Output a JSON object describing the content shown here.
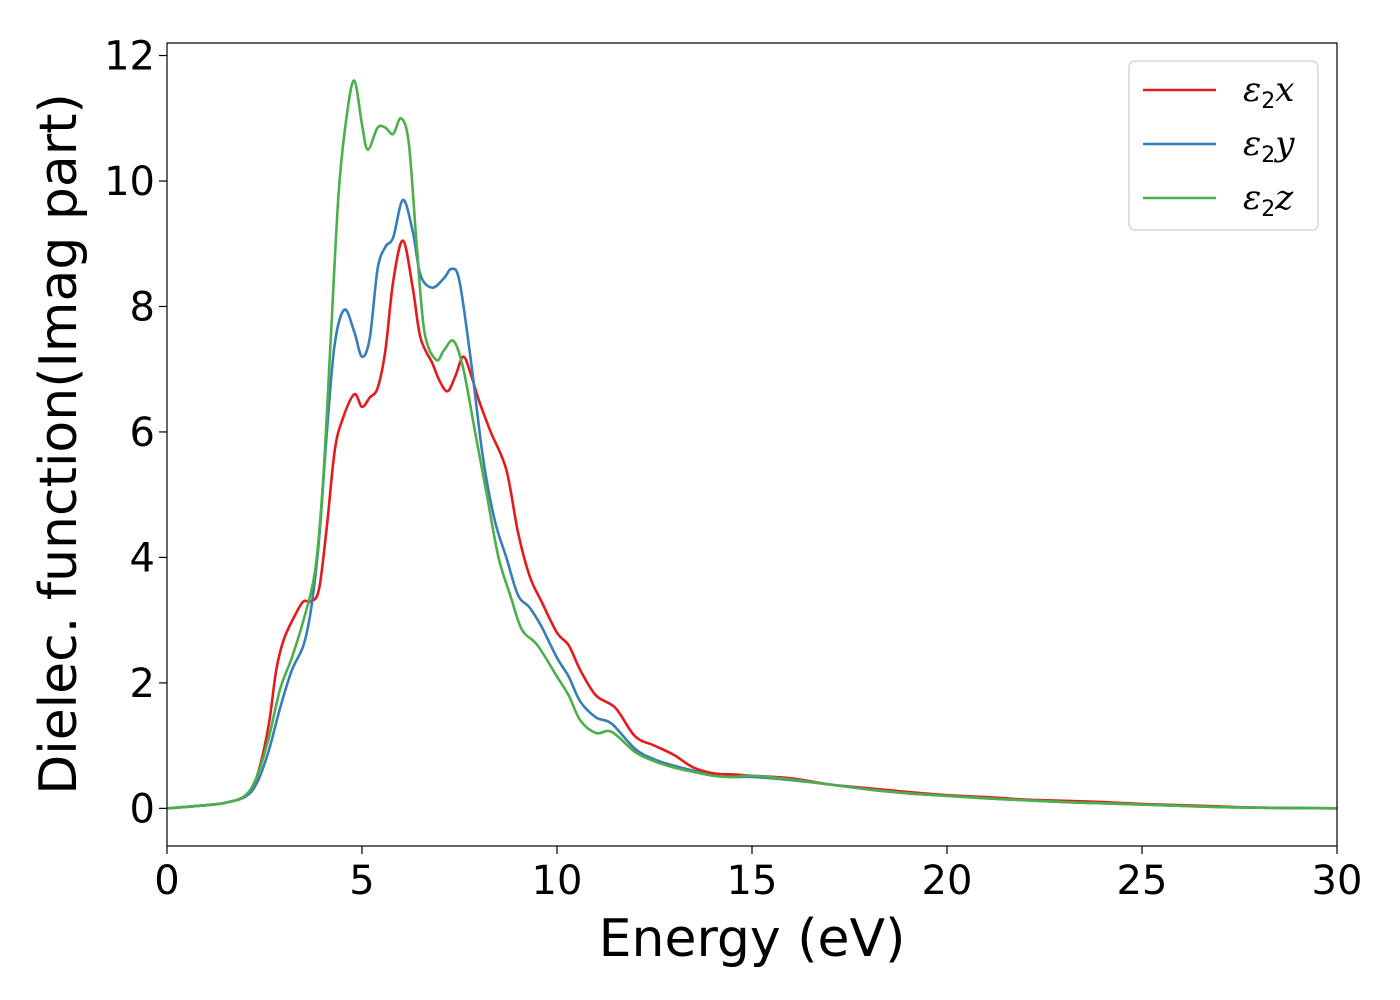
{
  "chart_data": {
    "type": "line",
    "title": "",
    "xlabel": "Energy (eV)",
    "ylabel": "Dielec. function(Imag part)",
    "xlim": [
      0,
      30
    ],
    "ylim": [
      -0.6,
      12.2
    ],
    "xticks": [
      0,
      5,
      10,
      15,
      20,
      25,
      30
    ],
    "yticks": [
      0,
      2,
      4,
      6,
      8,
      10,
      12
    ],
    "xtick_labels": [
      "0",
      "5",
      "10",
      "15",
      "20",
      "25",
      "30"
    ],
    "ytick_labels": [
      "0",
      "2",
      "4",
      "6",
      "8",
      "10",
      "12"
    ],
    "grid": false,
    "legend_position": "top-right",
    "series": [
      {
        "name": "ε2x",
        "legend_base": "ε",
        "legend_sub": "2",
        "legend_var": "x",
        "color": "#e41a1c",
        "points": [
          [
            0,
            0
          ],
          [
            1,
            0.05
          ],
          [
            1.5,
            0.09
          ],
          [
            2,
            0.2
          ],
          [
            2.3,
            0.5
          ],
          [
            2.6,
            1.3
          ],
          [
            2.8,
            2.2
          ],
          [
            3.0,
            2.7
          ],
          [
            3.3,
            3.1
          ],
          [
            3.5,
            3.3
          ],
          [
            3.7,
            3.3
          ],
          [
            3.9,
            3.5
          ],
          [
            4.1,
            4.5
          ],
          [
            4.3,
            5.7
          ],
          [
            4.5,
            6.2
          ],
          [
            4.8,
            6.6
          ],
          [
            5.0,
            6.4
          ],
          [
            5.2,
            6.55
          ],
          [
            5.4,
            6.7
          ],
          [
            5.6,
            7.3
          ],
          [
            5.8,
            8.4
          ],
          [
            6.05,
            9.05
          ],
          [
            6.3,
            8.3
          ],
          [
            6.5,
            7.5
          ],
          [
            6.8,
            7.1
          ],
          [
            7.0,
            6.8
          ],
          [
            7.2,
            6.65
          ],
          [
            7.4,
            6.9
          ],
          [
            7.6,
            7.2
          ],
          [
            7.8,
            6.9
          ],
          [
            8.0,
            6.5
          ],
          [
            8.3,
            6.0
          ],
          [
            8.7,
            5.4
          ],
          [
            9.0,
            4.4
          ],
          [
            9.3,
            3.7
          ],
          [
            9.6,
            3.3
          ],
          [
            10.0,
            2.8
          ],
          [
            10.3,
            2.6
          ],
          [
            10.6,
            2.2
          ],
          [
            11.0,
            1.8
          ],
          [
            11.5,
            1.6
          ],
          [
            12.0,
            1.15
          ],
          [
            12.5,
            1.0
          ],
          [
            13.0,
            0.85
          ],
          [
            13.5,
            0.65
          ],
          [
            14.0,
            0.56
          ],
          [
            14.5,
            0.54
          ],
          [
            15.0,
            0.52
          ],
          [
            16.0,
            0.48
          ],
          [
            17.0,
            0.38
          ],
          [
            18.0,
            0.32
          ],
          [
            19.0,
            0.26
          ],
          [
            20.0,
            0.21
          ],
          [
            21.0,
            0.18
          ],
          [
            22.0,
            0.14
          ],
          [
            23.0,
            0.12
          ],
          [
            24.0,
            0.1
          ],
          [
            25.0,
            0.07
          ],
          [
            26.0,
            0.05
          ],
          [
            27.0,
            0.03
          ],
          [
            28.0,
            0.01
          ],
          [
            30.0,
            0.0
          ]
        ]
      },
      {
        "name": "ε2y",
        "legend_base": "ε",
        "legend_sub": "2",
        "legend_var": "y",
        "color": "#377eb8",
        "points": [
          [
            0,
            0
          ],
          [
            1,
            0.05
          ],
          [
            1.5,
            0.09
          ],
          [
            2,
            0.18
          ],
          [
            2.3,
            0.4
          ],
          [
            2.6,
            0.9
          ],
          [
            2.9,
            1.6
          ],
          [
            3.2,
            2.2
          ],
          [
            3.5,
            2.6
          ],
          [
            3.7,
            3.2
          ],
          [
            3.9,
            4.3
          ],
          [
            4.1,
            6.0
          ],
          [
            4.3,
            7.4
          ],
          [
            4.55,
            7.95
          ],
          [
            4.8,
            7.6
          ],
          [
            5.0,
            7.2
          ],
          [
            5.2,
            7.5
          ],
          [
            5.4,
            8.6
          ],
          [
            5.6,
            8.95
          ],
          [
            5.8,
            9.1
          ],
          [
            6.05,
            9.7
          ],
          [
            6.3,
            9.2
          ],
          [
            6.5,
            8.5
          ],
          [
            6.8,
            8.3
          ],
          [
            7.1,
            8.45
          ],
          [
            7.3,
            8.6
          ],
          [
            7.5,
            8.4
          ],
          [
            7.8,
            7.1
          ],
          [
            8.1,
            5.6
          ],
          [
            8.4,
            4.6
          ],
          [
            8.7,
            4.0
          ],
          [
            9.0,
            3.4
          ],
          [
            9.3,
            3.2
          ],
          [
            9.6,
            2.9
          ],
          [
            10.0,
            2.4
          ],
          [
            10.3,
            2.1
          ],
          [
            10.6,
            1.7
          ],
          [
            11.0,
            1.45
          ],
          [
            11.4,
            1.35
          ],
          [
            12.0,
            0.95
          ],
          [
            12.5,
            0.78
          ],
          [
            13.0,
            0.68
          ],
          [
            13.5,
            0.6
          ],
          [
            14.0,
            0.52
          ],
          [
            14.5,
            0.5
          ],
          [
            15.0,
            0.5
          ],
          [
            16.0,
            0.45
          ],
          [
            17.0,
            0.38
          ],
          [
            18.0,
            0.3
          ],
          [
            19.0,
            0.24
          ],
          [
            20.0,
            0.2
          ],
          [
            21.0,
            0.16
          ],
          [
            22.0,
            0.13
          ],
          [
            23.0,
            0.1
          ],
          [
            24.0,
            0.08
          ],
          [
            25.0,
            0.06
          ],
          [
            26.0,
            0.04
          ],
          [
            27.0,
            0.02
          ],
          [
            28.0,
            0.01
          ],
          [
            30.0,
            0.0
          ]
        ]
      },
      {
        "name": "ε2z",
        "legend_base": "ε",
        "legend_sub": "2",
        "legend_var": "z",
        "color": "#4daf4a",
        "points": [
          [
            0,
            0
          ],
          [
            1,
            0.05
          ],
          [
            1.5,
            0.09
          ],
          [
            2,
            0.2
          ],
          [
            2.3,
            0.5
          ],
          [
            2.6,
            1.1
          ],
          [
            2.9,
            1.9
          ],
          [
            3.2,
            2.4
          ],
          [
            3.5,
            3.0
          ],
          [
            3.8,
            3.8
          ],
          [
            4.0,
            5.2
          ],
          [
            4.2,
            7.5
          ],
          [
            4.4,
            9.8
          ],
          [
            4.6,
            11.0
          ],
          [
            4.8,
            11.6
          ],
          [
            5.0,
            10.9
          ],
          [
            5.15,
            10.5
          ],
          [
            5.4,
            10.85
          ],
          [
            5.6,
            10.85
          ],
          [
            5.8,
            10.75
          ],
          [
            6.0,
            11.0
          ],
          [
            6.2,
            10.6
          ],
          [
            6.4,
            9.0
          ],
          [
            6.6,
            7.6
          ],
          [
            6.9,
            7.15
          ],
          [
            7.1,
            7.3
          ],
          [
            7.35,
            7.45
          ],
          [
            7.6,
            7.0
          ],
          [
            7.9,
            6.0
          ],
          [
            8.2,
            5.0
          ],
          [
            8.5,
            4.0
          ],
          [
            8.8,
            3.4
          ],
          [
            9.1,
            2.85
          ],
          [
            9.5,
            2.6
          ],
          [
            10.0,
            2.1
          ],
          [
            10.3,
            1.8
          ],
          [
            10.6,
            1.4
          ],
          [
            11.0,
            1.2
          ],
          [
            11.4,
            1.22
          ],
          [
            12.0,
            0.9
          ],
          [
            12.5,
            0.75
          ],
          [
            13.0,
            0.65
          ],
          [
            13.5,
            0.58
          ],
          [
            14.0,
            0.52
          ],
          [
            14.5,
            0.5
          ],
          [
            15.0,
            0.52
          ],
          [
            16.0,
            0.46
          ],
          [
            17.0,
            0.38
          ],
          [
            18.0,
            0.3
          ],
          [
            19.0,
            0.24
          ],
          [
            20.0,
            0.2
          ],
          [
            21.0,
            0.16
          ],
          [
            22.0,
            0.13
          ],
          [
            23.0,
            0.1
          ],
          [
            24.0,
            0.08
          ],
          [
            25.0,
            0.06
          ],
          [
            26.0,
            0.04
          ],
          [
            27.0,
            0.02
          ],
          [
            28.0,
            0.01
          ],
          [
            30.0,
            0.0
          ]
        ]
      }
    ]
  }
}
